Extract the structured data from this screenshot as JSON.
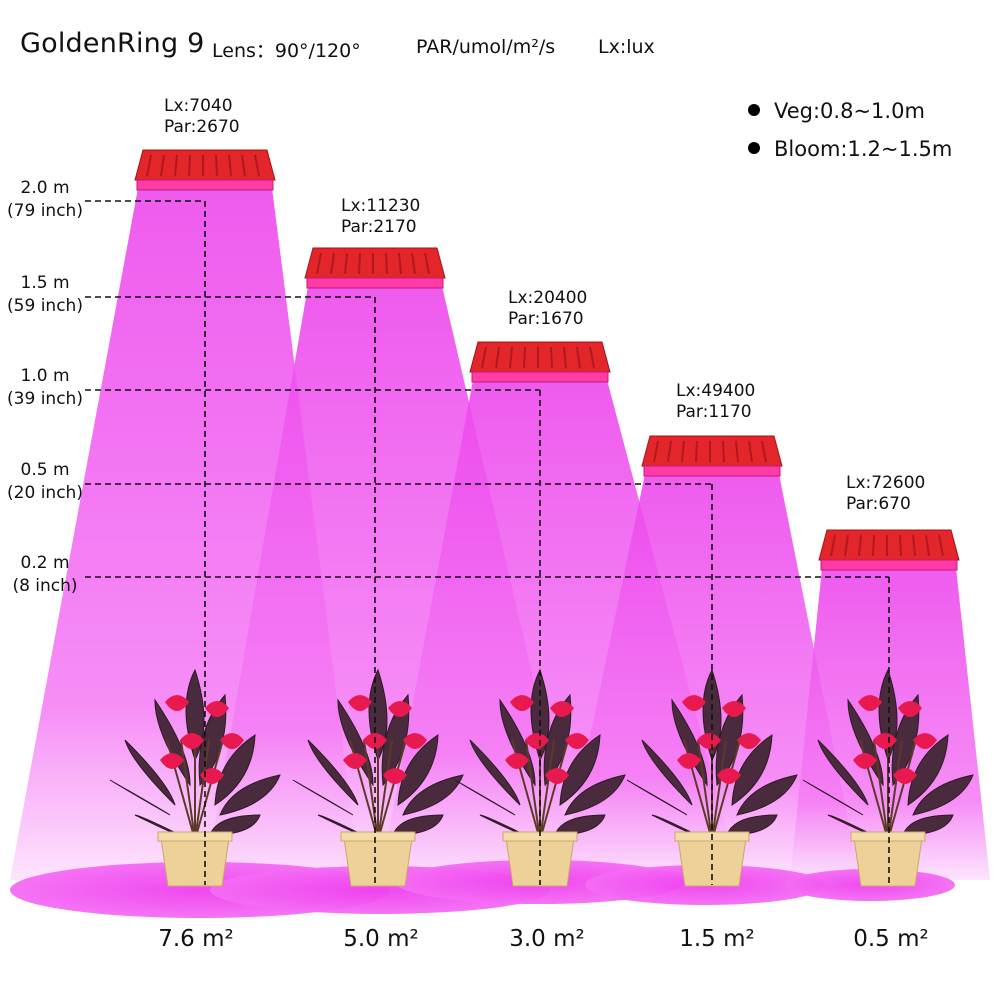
{
  "header": {
    "title": "GoldenRing 9",
    "lens": "Lens：90°/120°",
    "par_unit": "PAR/umol/m²/s",
    "lux_unit": "Lx:lux"
  },
  "legend": [
    {
      "label": "Veg:0.8~1.0m"
    },
    {
      "label": "Bloom:1.2~1.5m"
    }
  ],
  "heights": [
    {
      "m": "2.0 m",
      "inch": "(79 inch)"
    },
    {
      "m": "1.5 m",
      "inch": "(59 inch)"
    },
    {
      "m": "1.0 m",
      "inch": "(39 inch)"
    },
    {
      "m": "0.5 m",
      "inch": "(20 inch)"
    },
    {
      "m": "0.2 m",
      "inch": "(8 inch)"
    }
  ],
  "readings": [
    {
      "lx": "Lx:7040",
      "par": "Par:2670",
      "area": "7.6 m²"
    },
    {
      "lx": "Lx:11230",
      "par": "Par:2170",
      "area": "5.0 m²"
    },
    {
      "lx": "Lx:20400",
      "par": "Par:1670",
      "area": "3.0 m²"
    },
    {
      "lx": "Lx:49400",
      "par": "Par:1170",
      "area": "1.5 m²"
    },
    {
      "lx": "Lx:72600",
      "par": "Par:670",
      "area": "0.5 m²"
    }
  ],
  "colors": {
    "beam": "#f04ef0",
    "beam_light": "#fbd2fb",
    "lamp": "#e3262a",
    "pot": "#eed198",
    "leaf": "#4a2a3d",
    "flower": "#e8194e"
  }
}
